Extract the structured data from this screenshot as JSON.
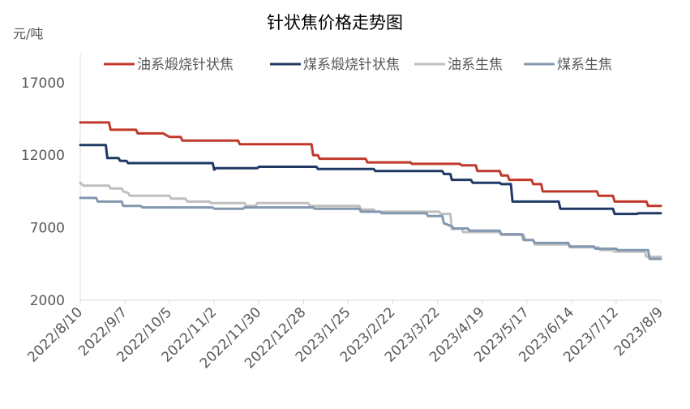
{
  "chart_data": {
    "type": "line",
    "title": "针状焦价格走势图",
    "ylabel": "元/吨",
    "xlabel": "",
    "ylim": [
      2000,
      19000
    ],
    "yticks": [
      2000,
      7000,
      12000,
      17000
    ],
    "ytick_labels": [
      "2000",
      "7000",
      "12000",
      "17000"
    ],
    "xlim": [
      "2022/8/10",
      "2023/8/9"
    ],
    "xticks": [
      "2022/8/10",
      "2022/9/7",
      "2022/10/5",
      "2022/11/2",
      "2022/11/30",
      "2022/12/28",
      "2023/1/25",
      "2023/2/22",
      "2023/3/22",
      "2023/4/19",
      "2023/5/17",
      "2023/6/14",
      "2023/7/12",
      "2023/8/9"
    ],
    "grid": false,
    "legend_position": "top",
    "series": [
      {
        "name": "油系煅烧针状焦",
        "color": "#c0392b",
        "points": [
          [
            "2022/8/10",
            14250
          ],
          [
            "2022/8/28",
            14250
          ],
          [
            "2022/8/29",
            13750
          ],
          [
            "2022/9/14",
            13750
          ],
          [
            "2022/9/15",
            13500
          ],
          [
            "2022/10/1",
            13500
          ],
          [
            "2022/10/5",
            13250
          ],
          [
            "2022/10/12",
            13250
          ],
          [
            "2022/10/13",
            13000
          ],
          [
            "2022/11/17",
            13000
          ],
          [
            "2022/11/18",
            12750
          ],
          [
            "2023/1/2",
            12750
          ],
          [
            "2023/1/3",
            12000
          ],
          [
            "2023/1/6",
            12000
          ],
          [
            "2023/1/7",
            11750
          ],
          [
            "2023/2/5",
            11750
          ],
          [
            "2023/2/6",
            11500
          ],
          [
            "2023/3/5",
            11500
          ],
          [
            "2023/3/6",
            11400
          ],
          [
            "2023/4/5",
            11400
          ],
          [
            "2023/4/6",
            11300
          ],
          [
            "2023/4/15",
            11300
          ],
          [
            "2023/4/16",
            10900
          ],
          [
            "2023/4/30",
            10900
          ],
          [
            "2023/5/1",
            10600
          ],
          [
            "2023/5/5",
            10600
          ],
          [
            "2023/5/6",
            10300
          ],
          [
            "2023/5/20",
            10300
          ],
          [
            "2023/5/21",
            10000
          ],
          [
            "2023/5/26",
            10000
          ],
          [
            "2023/5/27",
            9500
          ],
          [
            "2023/6/30",
            9500
          ],
          [
            "2023/7/1",
            9200
          ],
          [
            "2023/7/10",
            9200
          ],
          [
            "2023/7/11",
            8800
          ],
          [
            "2023/7/31",
            8800
          ],
          [
            "2023/8/1",
            8500
          ],
          [
            "2023/8/9",
            8500
          ]
        ]
      },
      {
        "name": "煤系煅烧针状焦",
        "color": "#1f3864",
        "points": [
          [
            "2022/8/10",
            12700
          ],
          [
            "2022/8/26",
            12700
          ],
          [
            "2022/8/27",
            11800
          ],
          [
            "2022/9/3",
            11800
          ],
          [
            "2022/9/4",
            11600
          ],
          [
            "2022/9/8",
            11600
          ],
          [
            "2022/9/9",
            11450
          ],
          [
            "2022/11/1",
            11450
          ],
          [
            "2022/11/2",
            11000
          ],
          [
            "2022/11/3",
            11100
          ],
          [
            "2022/11/29",
            11100
          ],
          [
            "2022/11/30",
            11200
          ],
          [
            "2023/1/5",
            11200
          ],
          [
            "2023/1/6",
            11050
          ],
          [
            "2023/2/10",
            11050
          ],
          [
            "2023/2/11",
            10900
          ],
          [
            "2023/3/25",
            10900
          ],
          [
            "2023/3/26",
            10700
          ],
          [
            "2023/3/30",
            10700
          ],
          [
            "2023/3/31",
            10300
          ],
          [
            "2023/4/12",
            10300
          ],
          [
            "2023/4/13",
            10100
          ],
          [
            "2023/4/30",
            10100
          ],
          [
            "2023/5/1",
            10000
          ],
          [
            "2023/5/7",
            10000
          ],
          [
            "2023/5/8",
            8800
          ],
          [
            "2023/6/6",
            8800
          ],
          [
            "2023/6/7",
            8300
          ],
          [
            "2023/7/10",
            8300
          ],
          [
            "2023/7/11",
            7950
          ],
          [
            "2023/7/25",
            7950
          ],
          [
            "2023/7/26",
            8000
          ],
          [
            "2023/8/9",
            8000
          ]
        ]
      },
      {
        "name": "油系生焦",
        "color": "#bfbfbf",
        "points": [
          [
            "2022/8/10",
            10100
          ],
          [
            "2022/8/12",
            9900
          ],
          [
            "2022/8/28",
            9900
          ],
          [
            "2022/8/29",
            9700
          ],
          [
            "2022/9/5",
            9700
          ],
          [
            "2022/9/6",
            9500
          ],
          [
            "2022/9/9",
            9400
          ],
          [
            "2022/9/10",
            9200
          ],
          [
            "2022/10/5",
            9200
          ],
          [
            "2022/10/6",
            9000
          ],
          [
            "2022/10/15",
            9000
          ],
          [
            "2022/10/16",
            8800
          ],
          [
            "2022/10/30",
            8800
          ],
          [
            "2022/10/31",
            8700
          ],
          [
            "2022/11/21",
            8700
          ],
          [
            "2022/11/22",
            8500
          ],
          [
            "2022/11/28",
            8500
          ],
          [
            "2022/11/29",
            8700
          ],
          [
            "2022/12/31",
            8700
          ],
          [
            "2023/1/1",
            8500
          ],
          [
            "2023/2/1",
            8500
          ],
          [
            "2023/2/2",
            8250
          ],
          [
            "2023/2/10",
            8250
          ],
          [
            "2023/2/11",
            8100
          ],
          [
            "2023/3/23",
            8100
          ],
          [
            "2023/3/24",
            7950
          ],
          [
            "2023/3/30",
            7950
          ],
          [
            "2023/3/31",
            6900
          ],
          [
            "2023/4/6",
            6950
          ],
          [
            "2023/4/7",
            6700
          ],
          [
            "2023/4/30",
            6700
          ],
          [
            "2023/5/1",
            6500
          ],
          [
            "2023/5/15",
            6500
          ],
          [
            "2023/5/16",
            6150
          ],
          [
            "2023/5/21",
            6150
          ],
          [
            "2023/5/22",
            5850
          ],
          [
            "2023/6/12",
            5850
          ],
          [
            "2023/6/13",
            5650
          ],
          [
            "2023/7/1",
            5650
          ],
          [
            "2023/7/2",
            5450
          ],
          [
            "2023/7/10",
            5450
          ],
          [
            "2023/7/11",
            5350
          ],
          [
            "2023/7/30",
            5350
          ],
          [
            "2023/7/31",
            5000
          ],
          [
            "2023/8/9",
            5000
          ]
        ]
      },
      {
        "name": "煤系生焦",
        "color": "#8497b0",
        "points": [
          [
            "2022/8/10",
            9050
          ],
          [
            "2022/8/20",
            9050
          ],
          [
            "2022/8/21",
            8800
          ],
          [
            "2022/9/5",
            8800
          ],
          [
            "2022/9/6",
            8500
          ],
          [
            "2022/9/17",
            8500
          ],
          [
            "2022/9/18",
            8400
          ],
          [
            "2022/11/1",
            8400
          ],
          [
            "2022/11/2",
            8300
          ],
          [
            "2022/11/20",
            8300
          ],
          [
            "2022/11/21",
            8400
          ],
          [
            "2023/1/3",
            8400
          ],
          [
            "2023/1/4",
            8300
          ],
          [
            "2023/2/1",
            8300
          ],
          [
            "2023/2/2",
            8100
          ],
          [
            "2023/2/14",
            8100
          ],
          [
            "2023/2/15",
            8000
          ],
          [
            "2023/3/15",
            8000
          ],
          [
            "2023/3/16",
            7800
          ],
          [
            "2023/3/25",
            7800
          ],
          [
            "2023/3/26",
            7300
          ],
          [
            "2023/3/31",
            7100
          ],
          [
            "2023/4/1",
            6950
          ],
          [
            "2023/4/10",
            6950
          ],
          [
            "2023/4/11",
            6800
          ],
          [
            "2023/4/30",
            6800
          ],
          [
            "2023/5/1",
            6550
          ],
          [
            "2023/5/14",
            6550
          ],
          [
            "2023/5/15",
            6150
          ],
          [
            "2023/5/21",
            6150
          ],
          [
            "2023/5/22",
            5950
          ],
          [
            "2023/6/12",
            5950
          ],
          [
            "2023/6/13",
            5700
          ],
          [
            "2023/6/28",
            5700
          ],
          [
            "2023/6/29",
            5550
          ],
          [
            "2023/7/12",
            5550
          ],
          [
            "2023/7/13",
            5450
          ],
          [
            "2023/8/1",
            5450
          ],
          [
            "2023/8/2",
            4850
          ],
          [
            "2023/8/9",
            4850
          ]
        ]
      }
    ]
  }
}
